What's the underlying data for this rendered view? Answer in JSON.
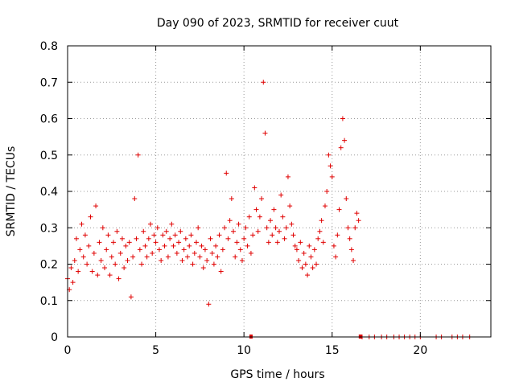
{
  "chart_data": {
    "type": "scatter",
    "title": "Day 090 of 2023, SRMTID for receiver cuut",
    "xlabel": "GPS time / hours",
    "ylabel": "SRMTID / TECUs",
    "xlim": [
      0,
      24
    ],
    "ylim": [
      0,
      0.8
    ],
    "xticks": [
      0,
      5,
      10,
      15,
      20
    ],
    "yticks": [
      0,
      0.1,
      0.2,
      0.3,
      0.4,
      0.5,
      0.6,
      0.7,
      0.8
    ],
    "xtick_labels": [
      "0",
      "5",
      "10",
      "15",
      "20"
    ],
    "ytick_labels": [
      "0",
      "0.1",
      "0.2",
      "0.3",
      "0.4",
      "0.5",
      "0.6",
      "0.7",
      "0.8"
    ],
    "grid": true,
    "marker": "+",
    "color": "#e00000",
    "series": [
      {
        "name": "SRMTID",
        "x": [
          0.0,
          0.1,
          0.2,
          0.3,
          0.4,
          0.5,
          0.6,
          0.7,
          0.8,
          0.9,
          1.0,
          1.1,
          1.2,
          1.3,
          1.4,
          1.5,
          1.6,
          1.7,
          1.8,
          1.9,
          2.0,
          2.1,
          2.2,
          2.3,
          2.4,
          2.5,
          2.6,
          2.7,
          2.8,
          2.9,
          3.0,
          3.1,
          3.2,
          3.3,
          3.4,
          3.5,
          3.6,
          3.7,
          3.8,
          3.9,
          4.0,
          4.1,
          4.2,
          4.3,
          4.4,
          4.5,
          4.6,
          4.7,
          4.8,
          4.9,
          5.0,
          5.1,
          5.2,
          5.3,
          5.4,
          5.5,
          5.6,
          5.7,
          5.8,
          5.9,
          6.0,
          6.1,
          6.2,
          6.3,
          6.4,
          6.5,
          6.6,
          6.7,
          6.8,
          6.9,
          7.0,
          7.1,
          7.2,
          7.3,
          7.4,
          7.5,
          7.6,
          7.7,
          7.8,
          7.9,
          8.0,
          8.1,
          8.2,
          8.3,
          8.4,
          8.5,
          8.6,
          8.7,
          8.8,
          8.9,
          9.0,
          9.1,
          9.2,
          9.3,
          9.4,
          9.5,
          9.6,
          9.7,
          9.8,
          9.9,
          10.0,
          10.1,
          10.2,
          10.3,
          10.4,
          10.5,
          10.6,
          10.7,
          10.8,
          10.9,
          11.0,
          11.1,
          11.2,
          11.3,
          11.4,
          11.5,
          11.6,
          11.7,
          11.8,
          11.9,
          12.0,
          12.1,
          12.2,
          12.3,
          12.4,
          12.5,
          12.6,
          12.7,
          12.8,
          12.9,
          13.0,
          13.1,
          13.2,
          13.3,
          13.4,
          13.5,
          13.6,
          13.7,
          13.8,
          13.9,
          14.0,
          14.1,
          14.2,
          14.3,
          14.4,
          14.5,
          14.6,
          14.7,
          14.8,
          14.9,
          15.0,
          15.1,
          15.2,
          15.3,
          15.4,
          15.5,
          15.6,
          15.7,
          15.8,
          15.9,
          16.0,
          16.1,
          16.2,
          16.3,
          16.4,
          16.5,
          16.7,
          17.1,
          17.4,
          17.8,
          18.1,
          18.5,
          18.8,
          19.1,
          19.4,
          19.7,
          20.0,
          20.9,
          21.2,
          21.8,
          22.1,
          22.4,
          22.8
        ],
        "y": [
          0.16,
          0.13,
          0.19,
          0.15,
          0.21,
          0.27,
          0.18,
          0.24,
          0.31,
          0.22,
          0.28,
          0.2,
          0.25,
          0.33,
          0.18,
          0.23,
          0.36,
          0.17,
          0.26,
          0.21,
          0.3,
          0.19,
          0.24,
          0.28,
          0.17,
          0.22,
          0.26,
          0.2,
          0.29,
          0.16,
          0.23,
          0.27,
          0.19,
          0.25,
          0.21,
          0.26,
          0.11,
          0.22,
          0.38,
          0.27,
          0.5,
          0.24,
          0.2,
          0.29,
          0.25,
          0.22,
          0.27,
          0.31,
          0.23,
          0.28,
          0.26,
          0.3,
          0.24,
          0.21,
          0.28,
          0.25,
          0.29,
          0.22,
          0.27,
          0.31,
          0.25,
          0.28,
          0.23,
          0.26,
          0.29,
          0.21,
          0.24,
          0.27,
          0.22,
          0.25,
          0.28,
          0.2,
          0.23,
          0.26,
          0.3,
          0.22,
          0.25,
          0.19,
          0.24,
          0.21,
          0.09,
          0.27,
          0.23,
          0.2,
          0.25,
          0.22,
          0.28,
          0.18,
          0.24,
          0.3,
          0.45,
          0.27,
          0.32,
          0.38,
          0.29,
          0.22,
          0.26,
          0.31,
          0.24,
          0.21,
          0.27,
          0.3,
          0.25,
          0.33,
          0.23,
          0.28,
          0.41,
          0.35,
          0.29,
          0.33,
          0.38,
          0.7,
          0.56,
          0.3,
          0.26,
          0.32,
          0.28,
          0.35,
          0.3,
          0.26,
          0.29,
          0.39,
          0.33,
          0.27,
          0.3,
          0.44,
          0.36,
          0.31,
          0.28,
          0.25,
          0.24,
          0.21,
          0.26,
          0.19,
          0.23,
          0.2,
          0.17,
          0.25,
          0.22,
          0.19,
          0.24,
          0.2,
          0.27,
          0.29,
          0.32,
          0.26,
          0.36,
          0.4,
          0.5,
          0.47,
          0.44,
          0.25,
          0.22,
          0.28,
          0.35,
          0.52,
          0.6,
          0.54,
          0.38,
          0.3,
          0.27,
          0.24,
          0.21,
          0.3,
          0.34,
          0.32,
          0.0,
          0.0,
          0.0,
          0.0,
          0.0,
          0.0,
          0.0,
          0.0,
          0.0,
          0.0,
          0.0,
          0.0,
          0.0,
          0.0,
          0.0,
          0.0,
          0.0
        ]
      }
    ],
    "bottom_markers_x": [
      10.4,
      16.6
    ]
  }
}
